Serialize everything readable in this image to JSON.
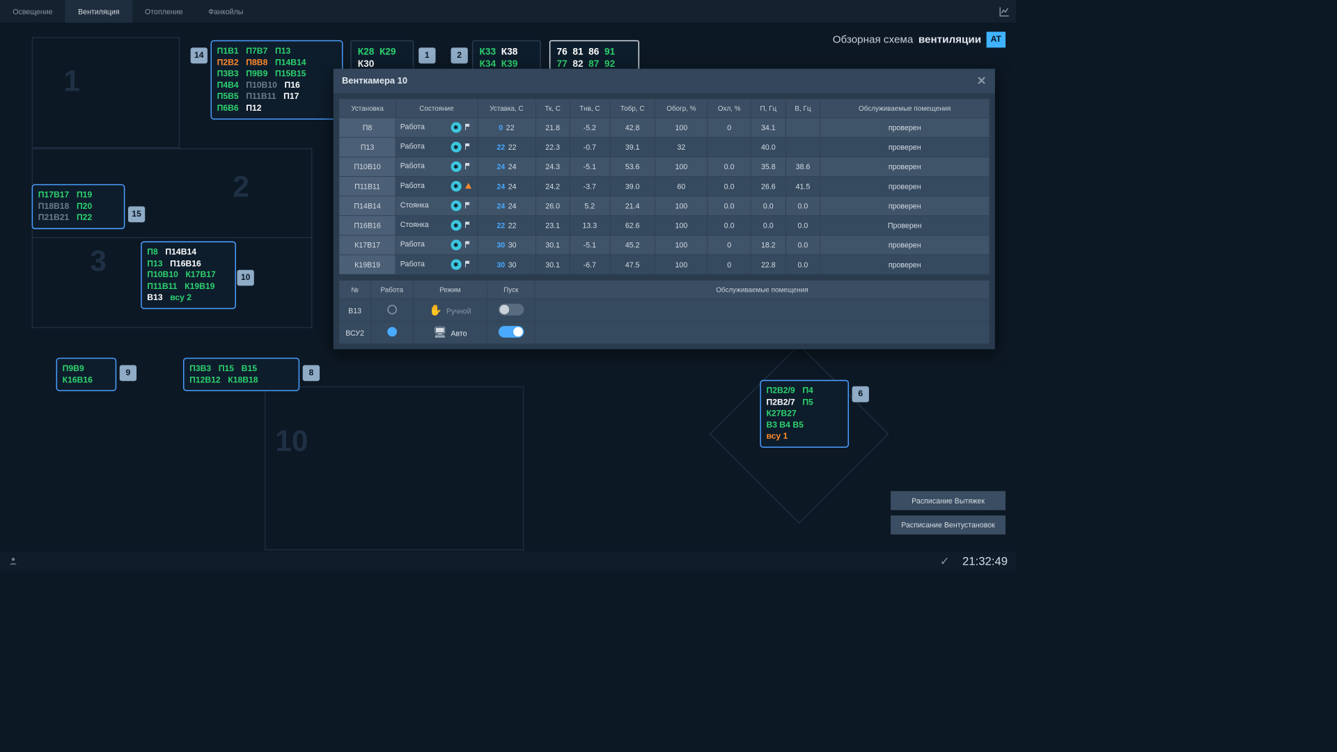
{
  "nav": {
    "tabs": [
      "Освещение",
      "Вентиляция",
      "Отопление",
      "Фанкойлы"
    ],
    "active": 1
  },
  "title": {
    "pre": "Обзорная схема",
    "strong": "вентиляции",
    "logo": "AT"
  },
  "footer": {
    "btn1": "Расписание Вытяжек",
    "btn2": "Расписание Вентустановок",
    "clock": "21:32:49"
  },
  "zones": {
    "1": "1",
    "2": "2",
    "3": "3",
    "10": "10"
  },
  "badges": {
    "b14": "14",
    "b1": "1",
    "b2": "2",
    "b15": "15",
    "b10": "10",
    "b9": "9",
    "b8": "8",
    "b6": "6"
  },
  "box_main": {
    "rows": [
      [
        {
          "t": "П1В1",
          "c": "g"
        },
        {
          "t": "П7В7",
          "c": "g"
        },
        {
          "t": "П13",
          "c": "g"
        }
      ],
      [
        {
          "t": "П2В2",
          "c": "o"
        },
        {
          "t": "П8В8",
          "c": "o"
        },
        {
          "t": "П14В14",
          "c": "g"
        }
      ],
      [
        {
          "t": "П3В3",
          "c": "g"
        },
        {
          "t": "П9В9",
          "c": "g"
        },
        {
          "t": "П15В15",
          "c": "g"
        }
      ],
      [
        {
          "t": "П4В4",
          "c": "g"
        },
        {
          "t": "П10В10",
          "c": "gr"
        },
        {
          "t": "П16",
          "c": "w"
        }
      ],
      [
        {
          "t": "П5В5",
          "c": "g"
        },
        {
          "t": "П11В11",
          "c": "gr"
        },
        {
          "t": "П17",
          "c": "w"
        }
      ],
      [
        {
          "t": "П6В6",
          "c": "g"
        },
        {
          "t": "П12",
          "c": "w"
        },
        {
          "t": "",
          "c": "w"
        }
      ]
    ]
  },
  "box_k1": {
    "r1": [
      "К28",
      "К29"
    ],
    "r2": [
      "К30",
      ""
    ]
  },
  "box_k2": {
    "r1": [
      "К33",
      "К38"
    ],
    "r2": [
      "К34",
      "К39"
    ]
  },
  "box_nums": {
    "r1": [
      "76",
      "81",
      "86",
      "91"
    ],
    "r2": [
      "77",
      "82",
      "87",
      "92"
    ]
  },
  "box_nums_colors": {
    "r1": [
      "w",
      "w",
      "w",
      "g"
    ],
    "r2": [
      "g",
      "w",
      "g",
      "g"
    ]
  },
  "box_left": {
    "rows": [
      [
        {
          "t": "П17В17",
          "c": "g"
        },
        {
          "t": "П19",
          "c": "g"
        }
      ],
      [
        {
          "t": "П18В18",
          "c": "gr"
        },
        {
          "t": "П20",
          "c": "g"
        }
      ],
      [
        {
          "t": "П21В21",
          "c": "gr"
        },
        {
          "t": "П22",
          "c": "g"
        }
      ]
    ]
  },
  "box_mid": {
    "rows": [
      [
        {
          "t": "П8",
          "c": "g"
        },
        {
          "t": "П14В14",
          "c": "w"
        }
      ],
      [
        {
          "t": "П13",
          "c": "g"
        },
        {
          "t": "П16В16",
          "c": "w"
        }
      ],
      [
        {
          "t": "П10В10",
          "c": "g"
        },
        {
          "t": "К17В17",
          "c": "g"
        }
      ],
      [
        {
          "t": "П11В11",
          "c": "g"
        },
        {
          "t": "К19В19",
          "c": "g"
        }
      ],
      [
        {
          "t": "В13",
          "c": "w"
        },
        {
          "t": "всу 2",
          "c": "g"
        }
      ]
    ]
  },
  "box_low_l": {
    "rows": [
      [
        {
          "t": "П9В9",
          "c": "g"
        }
      ],
      [
        {
          "t": "К16В16",
          "c": "g"
        }
      ]
    ]
  },
  "box_low_m": {
    "rows": [
      [
        {
          "t": "П3В3",
          "c": "g"
        },
        {
          "t": "П15",
          "c": "g"
        },
        {
          "t": "В15",
          "c": "g"
        }
      ],
      [
        {
          "t": "П12В12",
          "c": "g"
        },
        {
          "t": "К18В18",
          "c": "g"
        },
        {
          "t": "",
          "c": ""
        }
      ]
    ]
  },
  "box_right": {
    "rows": [
      [
        {
          "t": "П2В2/9",
          "c": "g"
        },
        {
          "t": "П4",
          "c": "g"
        }
      ],
      [
        {
          "t": "П2В2/7",
          "c": "w"
        },
        {
          "t": "П5",
          "c": "g"
        }
      ],
      [
        {
          "t": "К27В27",
          "c": "g"
        },
        {
          "t": "",
          "c": ""
        }
      ],
      [
        {
          "t": "В3 В4 В5",
          "c": "g"
        },
        {
          "t": "",
          "c": ""
        }
      ],
      [
        {
          "t": "всу 1",
          "c": "o"
        },
        {
          "t": "",
          "c": ""
        }
      ]
    ]
  },
  "modal": {
    "title": "Венткамера 10",
    "headers": [
      "Установка",
      "Состояние",
      "Уставка, С",
      "Тк, С",
      "Тнв, С",
      "Тобр, С",
      "Обогр, %",
      "Охл, %",
      "П, Гц",
      "В, Гц",
      "Обслуживаемые помещения"
    ],
    "rows": [
      {
        "u": "П8",
        "st": "Работа",
        "ic": "flag",
        "sp": [
          "0",
          "22"
        ],
        "tk": "21.8",
        "tnv": "-5.2",
        "tobr": "42.8",
        "heat": "100",
        "cool": "0",
        "p": "34.1",
        "v": "",
        "room": "проверен"
      },
      {
        "u": "П13",
        "st": "Работа",
        "ic": "flag",
        "sp": [
          "22",
          "22"
        ],
        "tk": "22.3",
        "tnv": "-0.7",
        "tobr": "39.1",
        "heat": "32",
        "cool": "",
        "p": "40.0",
        "v": "",
        "room": "проверен"
      },
      {
        "u": "П10В10",
        "st": "Работа",
        "ic": "flag",
        "sp": [
          "24",
          "24"
        ],
        "tk": "24.3",
        "tnv": "-5.1",
        "tobr": "53.6",
        "heat": "100",
        "cool": "0.0",
        "p": "35.8",
        "v": "38.6",
        "room": "проверен"
      },
      {
        "u": "П11В11",
        "st": "Работа",
        "ic": "warn",
        "sp": [
          "24",
          "24"
        ],
        "tk": "24.2",
        "tnv": "-3.7",
        "tobr": "39.0",
        "heat": "60",
        "cool": "0.0",
        "p": "26.6",
        "v": "41.5",
        "room": "проверен"
      },
      {
        "u": "П14В14",
        "st": "Стоянка",
        "ic": "flag",
        "sp": [
          "24",
          "24"
        ],
        "tk": "26.0",
        "tnv": "5.2",
        "tobr": "21.4",
        "heat": "100",
        "cool": "0.0",
        "p": "0.0",
        "v": "0.0",
        "room": "проверен"
      },
      {
        "u": "П16В16",
        "st": "Стоянка",
        "ic": "flag",
        "sp": [
          "22",
          "22"
        ],
        "tk": "23.1",
        "tnv": "13.3",
        "tobr": "62.6",
        "heat": "100",
        "cool": "0.0",
        "p": "0.0",
        "v": "0.0",
        "room": "Проверен"
      },
      {
        "u": "К17В17",
        "st": "Работа",
        "ic": "flag",
        "sp": [
          "30",
          "30"
        ],
        "tk": "30.1",
        "tnv": "-5.1",
        "tobr": "45.2",
        "heat": "100",
        "cool": "0",
        "p": "18.2",
        "v": "0.0",
        "room": "проверен"
      },
      {
        "u": "К19В19",
        "st": "Работа",
        "ic": "flag",
        "sp": [
          "30",
          "30"
        ],
        "tk": "30.1",
        "tnv": "-6.7",
        "tobr": "47.5",
        "heat": "100",
        "cool": "0",
        "p": "22.8",
        "v": "0.0",
        "room": "проверен"
      }
    ],
    "sub_headers": [
      "№",
      "Работа",
      "Режим",
      "Пуск",
      "Обслуживаемые помещения"
    ],
    "sub_rows": [
      {
        "n": "В13",
        "led": "off",
        "mode_ico": "hand",
        "mode": "Ручной",
        "toggle": "off"
      },
      {
        "n": "ВСУ2",
        "led": "on",
        "mode_ico": "mon",
        "mode": "Авто",
        "toggle": "on"
      }
    ]
  }
}
